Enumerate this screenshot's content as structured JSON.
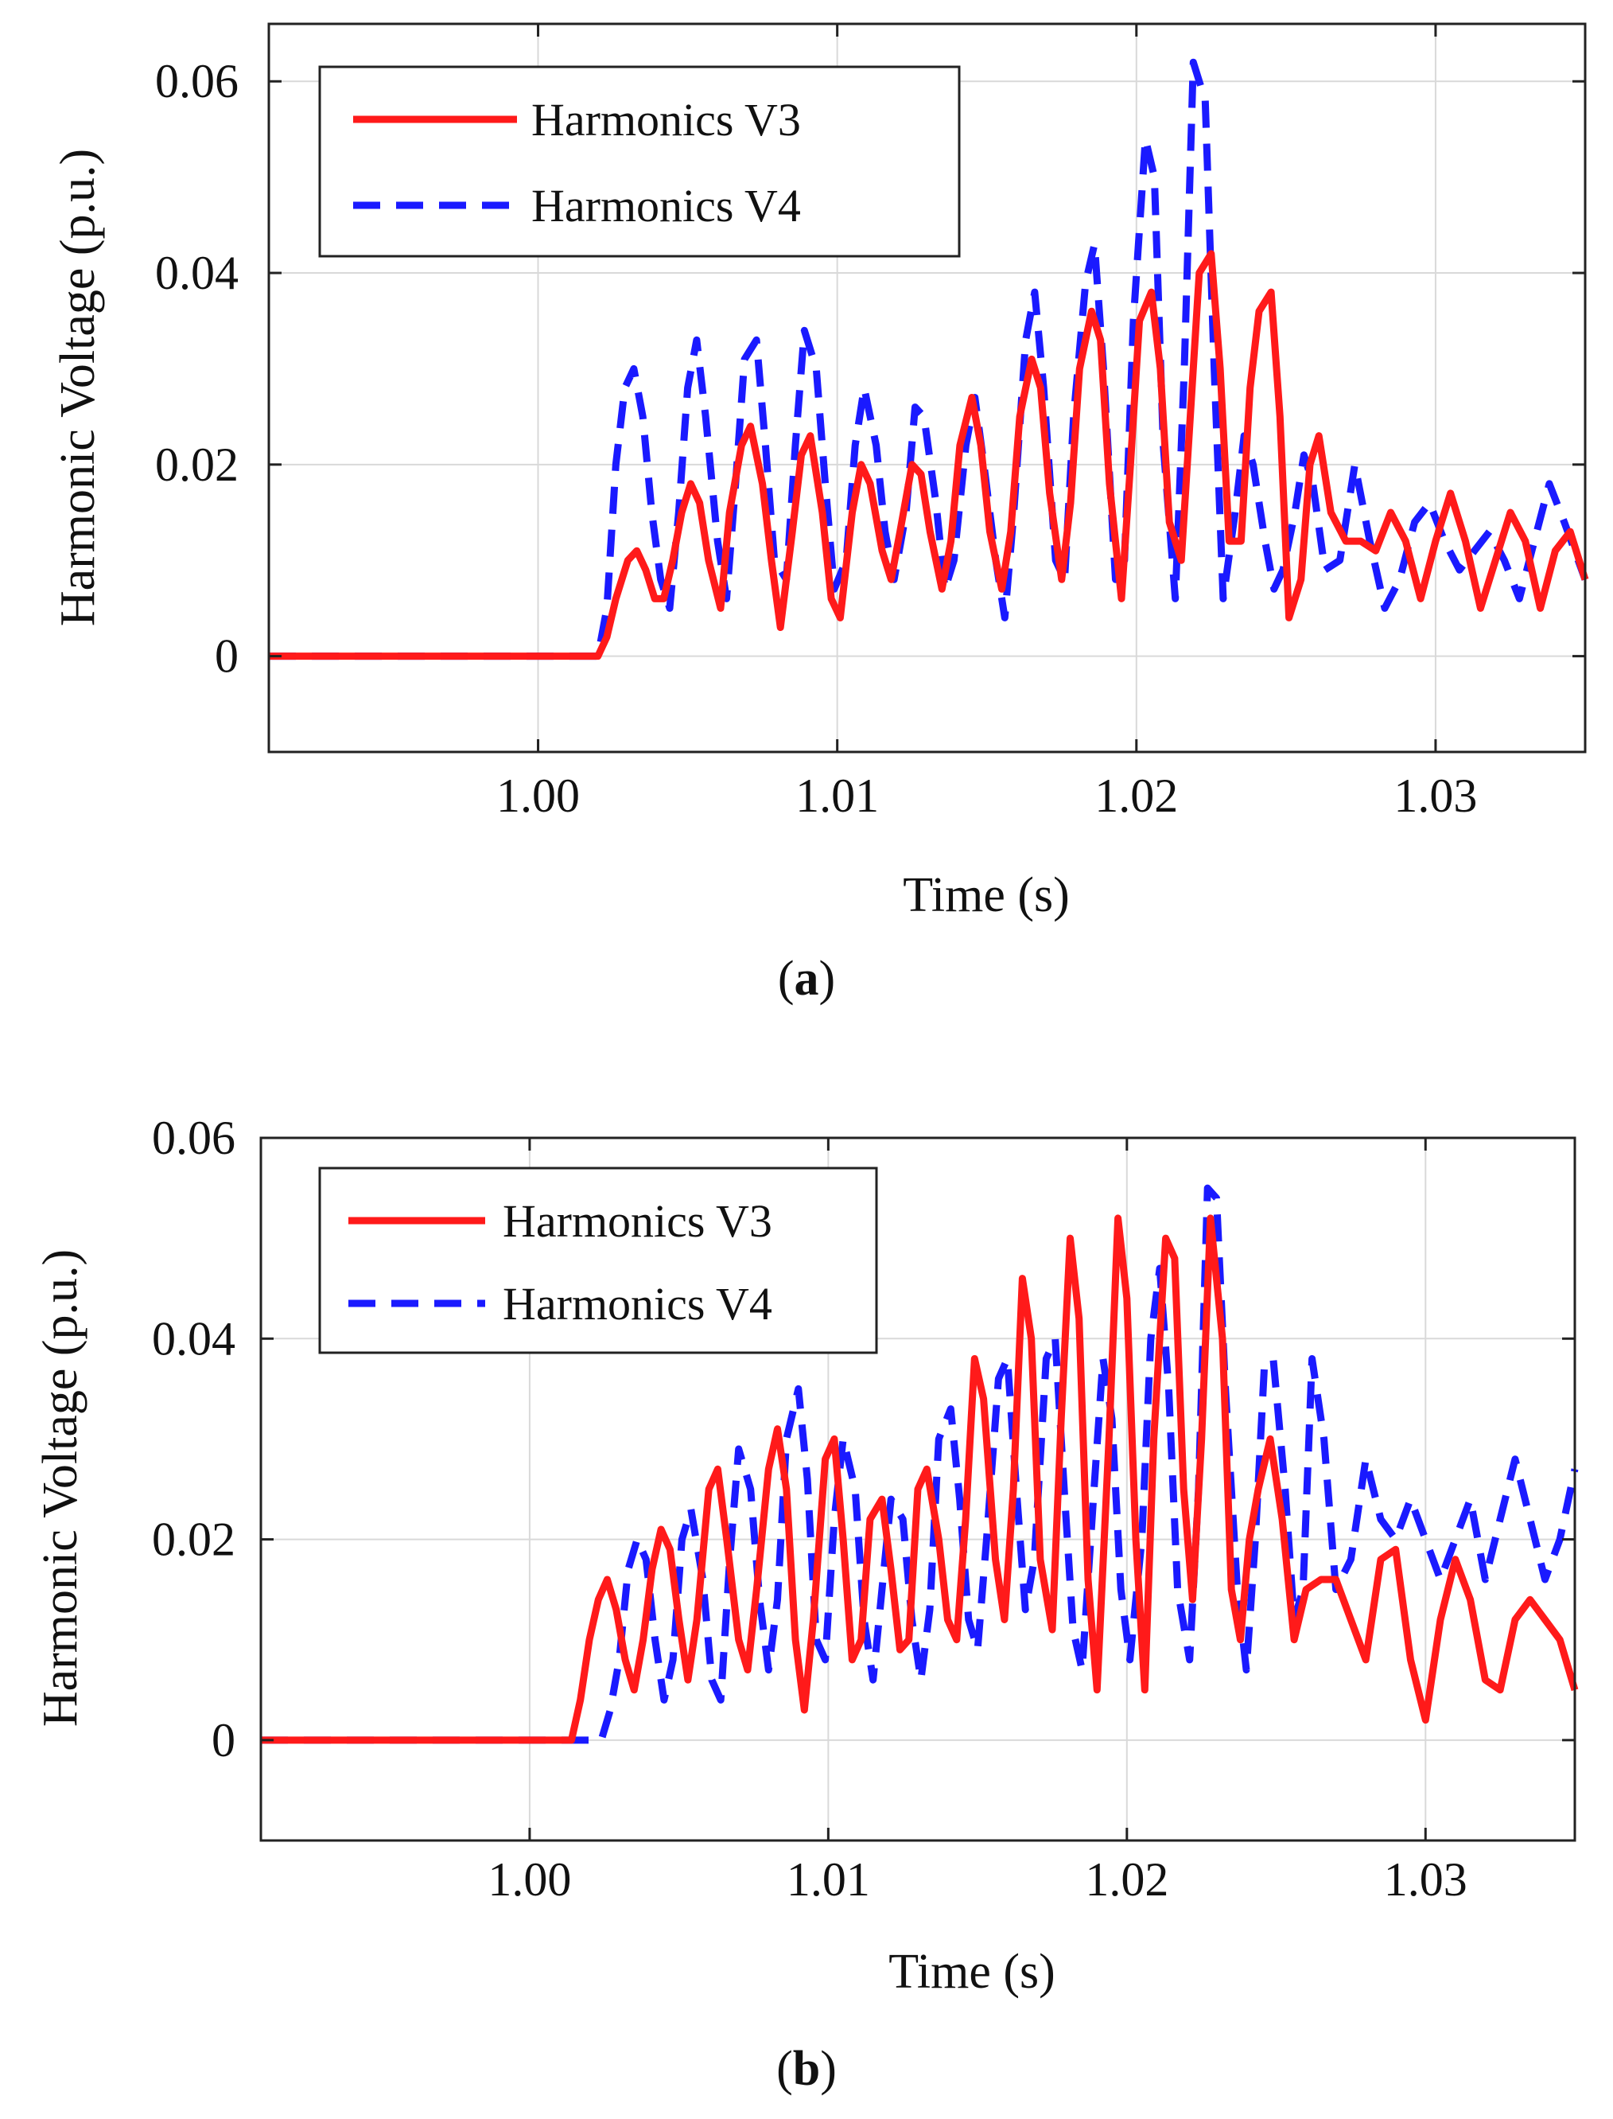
{
  "figure": {
    "captions": [
      {
        "open": "(",
        "label": "a",
        "close": ")"
      },
      {
        "open": "(",
        "label": "b",
        "close": ")"
      }
    ]
  },
  "chart_data": [
    {
      "type": "line",
      "panel": "a",
      "title": "",
      "xlabel": "Time (s)",
      "ylabel": "Harmonic Voltage (p.u.)",
      "xlim": [
        0.991,
        1.035
      ],
      "ylim": [
        -0.01,
        0.066
      ],
      "xticks": [
        1.0,
        1.01,
        1.02,
        1.03
      ],
      "xtick_labels": [
        "1.00",
        "1.01",
        "1.02",
        "1.03"
      ],
      "yticks": [
        0,
        0.02,
        0.04,
        0.06
      ],
      "ytick_labels": [
        "0",
        "0.02",
        "0.04",
        "0.06"
      ],
      "grid": true,
      "legend_position": "top-left",
      "colors": {
        "V3": "#ff1a1a",
        "V4": "#1a1aff"
      },
      "series": [
        {
          "name": "Harmonics V3",
          "style": "solid",
          "x": [
            0.991,
            1.0,
            1.002,
            1.0023,
            1.0026,
            1.003,
            1.0033,
            1.0036,
            1.0039,
            1.0042,
            1.0045,
            1.0048,
            1.0051,
            1.0054,
            1.0057,
            1.0061,
            1.0064,
            1.0068,
            1.0071,
            1.0075,
            1.0078,
            1.0081,
            1.0085,
            1.0088,
            1.0091,
            1.0095,
            1.0098,
            1.0101,
            1.0105,
            1.0108,
            1.0111,
            1.0115,
            1.0118,
            1.0121,
            1.0125,
            1.0128,
            1.0131,
            1.0135,
            1.0138,
            1.0141,
            1.0145,
            1.0148,
            1.0151,
            1.0155,
            1.0158,
            1.0161,
            1.0165,
            1.0168,
            1.0171,
            1.0175,
            1.0178,
            1.0181,
            1.0185,
            1.0188,
            1.0191,
            1.0195,
            1.0198,
            1.0201,
            1.0205,
            1.0208,
            1.0211,
            1.0215,
            1.0218,
            1.0221,
            1.0225,
            1.0228,
            1.0231,
            1.0235,
            1.0238,
            1.0241,
            1.0245,
            1.0248,
            1.0251,
            1.0255,
            1.0258,
            1.0261,
            1.0265,
            1.027,
            1.0275,
            1.028,
            1.0285,
            1.029,
            1.0295,
            1.03,
            1.0305,
            1.031,
            1.0315,
            1.032,
            1.0325,
            1.033,
            1.0335,
            1.034,
            1.0345,
            1.035
          ],
          "y": [
            0,
            0,
            0,
            0.002,
            0.006,
            0.01,
            0.011,
            0.009,
            0.006,
            0.006,
            0.01,
            0.015,
            0.018,
            0.016,
            0.01,
            0.005,
            0.015,
            0.022,
            0.024,
            0.018,
            0.01,
            0.003,
            0.013,
            0.021,
            0.023,
            0.015,
            0.006,
            0.004,
            0.015,
            0.02,
            0.018,
            0.011,
            0.008,
            0.013,
            0.02,
            0.019,
            0.013,
            0.007,
            0.012,
            0.022,
            0.027,
            0.022,
            0.013,
            0.007,
            0.013,
            0.025,
            0.031,
            0.028,
            0.017,
            0.008,
            0.016,
            0.03,
            0.036,
            0.033,
            0.018,
            0.006,
            0.02,
            0.035,
            0.038,
            0.03,
            0.014,
            0.01,
            0.025,
            0.04,
            0.042,
            0.03,
            0.012,
            0.012,
            0.028,
            0.036,
            0.038,
            0.025,
            0.004,
            0.008,
            0.02,
            0.023,
            0.015,
            0.012,
            0.012,
            0.011,
            0.015,
            0.012,
            0.006,
            0.012,
            0.017,
            0.012,
            0.005,
            0.01,
            0.015,
            0.012,
            0.005,
            0.011,
            0.013,
            0.008
          ]
        },
        {
          "name": "Harmonics V4",
          "style": "dashed",
          "x": [
            0.991,
            1.0,
            1.002,
            1.0023,
            1.0026,
            1.0029,
            1.0032,
            1.0035,
            1.0038,
            1.0041,
            1.0044,
            1.0047,
            1.005,
            1.0053,
            1.0056,
            1.006,
            1.0063,
            1.0066,
            1.0069,
            1.0073,
            1.0076,
            1.0079,
            1.0083,
            1.0086,
            1.0089,
            1.0093,
            1.0096,
            1.0099,
            1.0103,
            1.0106,
            1.0109,
            1.0113,
            1.0116,
            1.0119,
            1.0123,
            1.0126,
            1.0129,
            1.0133,
            1.0136,
            1.0139,
            1.0143,
            1.0146,
            1.0149,
            1.0153,
            1.0156,
            1.0159,
            1.0163,
            1.0166,
            1.0169,
            1.0173,
            1.0176,
            1.0179,
            1.0183,
            1.0186,
            1.0189,
            1.0193,
            1.0196,
            1.0199,
            1.0203,
            1.0206,
            1.0209,
            1.0213,
            1.0216,
            1.0219,
            1.0223,
            1.0226,
            1.0229,
            1.0233,
            1.0236,
            1.0239,
            1.0243,
            1.0246,
            1.0249,
            1.0253,
            1.0256,
            1.0259,
            1.0263,
            1.0268,
            1.0273,
            1.0278,
            1.0283,
            1.0288,
            1.0293,
            1.0298,
            1.0303,
            1.0308,
            1.0313,
            1.0318,
            1.0323,
            1.0328,
            1.0333,
            1.0338,
            1.0343,
            1.035
          ],
          "y": [
            0,
            0,
            0,
            0.005,
            0.02,
            0.028,
            0.03,
            0.025,
            0.015,
            0.008,
            0.005,
            0.015,
            0.028,
            0.033,
            0.025,
            0.012,
            0.006,
            0.018,
            0.031,
            0.033,
            0.022,
            0.01,
            0.008,
            0.022,
            0.034,
            0.03,
            0.018,
            0.007,
            0.01,
            0.022,
            0.028,
            0.022,
            0.013,
            0.008,
            0.015,
            0.026,
            0.025,
            0.016,
            0.007,
            0.01,
            0.022,
            0.027,
            0.02,
            0.01,
            0.004,
            0.015,
            0.033,
            0.038,
            0.028,
            0.01,
            0.008,
            0.025,
            0.039,
            0.043,
            0.03,
            0.008,
            0.01,
            0.035,
            0.054,
            0.05,
            0.022,
            0.006,
            0.03,
            0.062,
            0.058,
            0.03,
            0.006,
            0.015,
            0.023,
            0.02,
            0.012,
            0.007,
            0.009,
            0.015,
            0.021,
            0.018,
            0.009,
            0.01,
            0.02,
            0.012,
            0.005,
            0.008,
            0.014,
            0.016,
            0.012,
            0.009,
            0.011,
            0.013,
            0.01,
            0.006,
            0.012,
            0.018,
            0.014,
            0.008
          ]
        }
      ]
    },
    {
      "type": "line",
      "panel": "b",
      "title": "",
      "xlabel": "Time (s)",
      "ylabel": "Harmonic Voltage (p.u.)",
      "xlim": [
        0.991,
        1.035
      ],
      "ylim": [
        -0.01,
        0.06
      ],
      "xticks": [
        1.0,
        1.01,
        1.02,
        1.03
      ],
      "xtick_labels": [
        "1.00",
        "1.01",
        "1.02",
        "1.03"
      ],
      "yticks": [
        0,
        0.02,
        0.04,
        0.06
      ],
      "ytick_labels": [
        "0",
        "0.02",
        "0.04",
        "0.06"
      ],
      "grid": true,
      "legend_position": "top-left",
      "colors": {
        "V3": "#ff1a1a",
        "V4": "#1a1aff"
      },
      "series": [
        {
          "name": "Harmonics V3",
          "style": "solid",
          "x": [
            0.991,
            1.0,
            1.0014,
            1.0017,
            1.002,
            1.0023,
            1.0026,
            1.0029,
            1.0032,
            1.0035,
            1.0038,
            1.0041,
            1.0044,
            1.0047,
            1.005,
            1.0053,
            1.0056,
            1.006,
            1.0063,
            1.0066,
            1.007,
            1.0073,
            1.0076,
            1.008,
            1.0083,
            1.0086,
            1.0089,
            1.0092,
            1.0095,
            1.0099,
            1.0102,
            1.0105,
            1.0108,
            1.0111,
            1.0114,
            1.0118,
            1.0121,
            1.0124,
            1.0127,
            1.013,
            1.0133,
            1.0137,
            1.014,
            1.0143,
            1.0146,
            1.0149,
            1.0152,
            1.0156,
            1.0159,
            1.0162,
            1.0165,
            1.0168,
            1.0171,
            1.0175,
            1.0178,
            1.0181,
            1.0184,
            1.0187,
            1.019,
            1.0194,
            1.0197,
            1.02,
            1.0203,
            1.0206,
            1.0209,
            1.0213,
            1.0216,
            1.0219,
            1.0222,
            1.0225,
            1.0228,
            1.0232,
            1.0235,
            1.0238,
            1.0241,
            1.0244,
            1.0248,
            1.0252,
            1.0256,
            1.026,
            1.0265,
            1.027,
            1.0275,
            1.028,
            1.0285,
            1.029,
            1.0295,
            1.03,
            1.0305,
            1.031,
            1.0315,
            1.032,
            1.0325,
            1.033,
            1.0335,
            1.034,
            1.0345,
            1.035
          ],
          "y": [
            0,
            0,
            0,
            0.004,
            0.01,
            0.014,
            0.016,
            0.013,
            0.008,
            0.005,
            0.01,
            0.017,
            0.021,
            0.019,
            0.012,
            0.006,
            0.012,
            0.025,
            0.027,
            0.02,
            0.01,
            0.007,
            0.015,
            0.027,
            0.031,
            0.025,
            0.01,
            0.003,
            0.012,
            0.028,
            0.03,
            0.02,
            0.008,
            0.01,
            0.022,
            0.024,
            0.017,
            0.009,
            0.01,
            0.025,
            0.027,
            0.02,
            0.012,
            0.01,
            0.022,
            0.038,
            0.034,
            0.018,
            0.012,
            0.025,
            0.046,
            0.04,
            0.018,
            0.011,
            0.032,
            0.05,
            0.042,
            0.016,
            0.005,
            0.03,
            0.052,
            0.044,
            0.02,
            0.005,
            0.03,
            0.05,
            0.048,
            0.025,
            0.014,
            0.03,
            0.052,
            0.04,
            0.015,
            0.01,
            0.02,
            0.025,
            0.03,
            0.022,
            0.01,
            0.015,
            0.016,
            0.016,
            0.012,
            0.008,
            0.018,
            0.019,
            0.008,
            0.002,
            0.012,
            0.018,
            0.014,
            0.006,
            0.005,
            0.012,
            0.014,
            0.012,
            0.01,
            0.005
          ]
        },
        {
          "name": "Harmonics V4",
          "style": "dashed",
          "x": [
            0.991,
            1.0,
            1.0024,
            1.0027,
            1.003,
            1.0033,
            1.0036,
            1.0039,
            1.0042,
            1.0045,
            1.0048,
            1.0051,
            1.0054,
            1.0058,
            1.0061,
            1.0064,
            1.0067,
            1.007,
            1.0074,
            1.0077,
            1.008,
            1.0083,
            1.0086,
            1.009,
            1.0093,
            1.0096,
            1.0099,
            1.0102,
            1.0105,
            1.0109,
            1.0112,
            1.0115,
            1.0118,
            1.0121,
            1.0125,
            1.0128,
            1.0131,
            1.0134,
            1.0137,
            1.0141,
            1.0144,
            1.0147,
            1.015,
            1.0153,
            1.0157,
            1.016,
            1.0163,
            1.0166,
            1.0169,
            1.0173,
            1.0176,
            1.0179,
            1.0182,
            1.0185,
            1.0189,
            1.0192,
            1.0195,
            1.0198,
            1.0201,
            1.0205,
            1.0208,
            1.0211,
            1.0214,
            1.0217,
            1.0221,
            1.0224,
            1.0227,
            1.023,
            1.0233,
            1.0237,
            1.024,
            1.0243,
            1.0246,
            1.0249,
            1.0253,
            1.0256,
            1.0259,
            1.0262,
            1.0266,
            1.027,
            1.0275,
            1.028,
            1.0285,
            1.029,
            1.0295,
            1.03,
            1.0305,
            1.031,
            1.0315,
            1.032,
            1.0325,
            1.033,
            1.0335,
            1.034,
            1.0345,
            1.035
          ],
          "y": [
            0,
            0,
            0,
            0.003,
            0.008,
            0.017,
            0.02,
            0.018,
            0.01,
            0.004,
            0.008,
            0.02,
            0.023,
            0.016,
            0.006,
            0.004,
            0.018,
            0.029,
            0.025,
            0.014,
            0.007,
            0.014,
            0.03,
            0.035,
            0.026,
            0.01,
            0.008,
            0.022,
            0.03,
            0.025,
            0.012,
            0.006,
            0.015,
            0.024,
            0.022,
            0.012,
            0.006,
            0.013,
            0.03,
            0.033,
            0.024,
            0.012,
            0.009,
            0.02,
            0.036,
            0.038,
            0.025,
            0.013,
            0.018,
            0.038,
            0.04,
            0.025,
            0.011,
            0.007,
            0.025,
            0.038,
            0.032,
            0.015,
            0.008,
            0.02,
            0.04,
            0.047,
            0.035,
            0.015,
            0.008,
            0.025,
            0.055,
            0.054,
            0.035,
            0.015,
            0.007,
            0.02,
            0.037,
            0.038,
            0.025,
            0.012,
            0.015,
            0.038,
            0.03,
            0.015,
            0.018,
            0.028,
            0.022,
            0.02,
            0.024,
            0.02,
            0.016,
            0.02,
            0.024,
            0.016,
            0.022,
            0.028,
            0.022,
            0.016,
            0.02,
            0.027
          ]
        }
      ]
    }
  ]
}
